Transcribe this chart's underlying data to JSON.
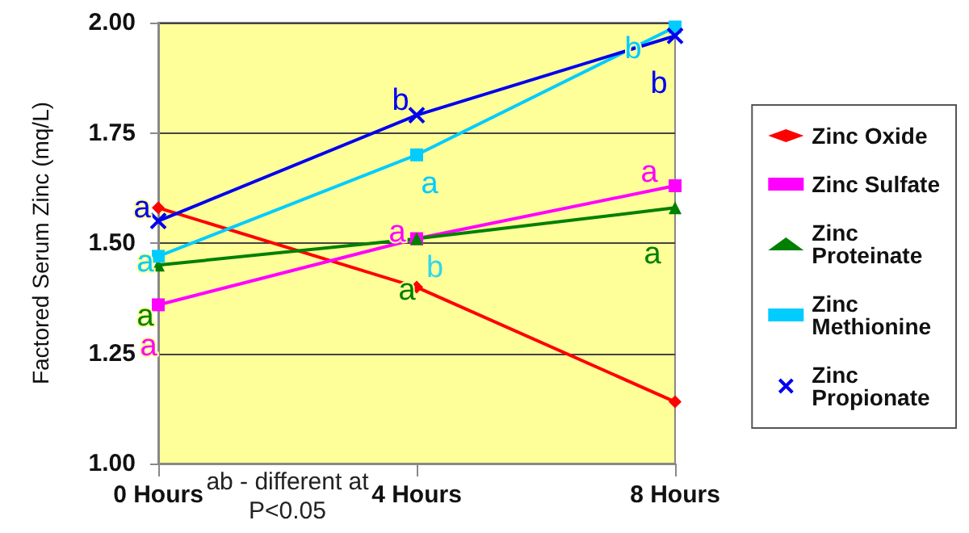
{
  "chart_data": {
    "type": "line",
    "ylabel": "Factored Serum Zinc (mq/L)",
    "categories": [
      "0 Hours",
      "4 Hours",
      "8 Hours"
    ],
    "ylim": [
      1.0,
      2.0
    ],
    "yticks": [
      {
        "value": 1,
        "label": "1.00"
      },
      {
        "value": 1.25,
        "label": "1.25"
      },
      {
        "value": 1.5,
        "label": "1.50"
      },
      {
        "value": 1.75,
        "label": "1.75"
      },
      {
        "value": 2,
        "label": "2.00"
      }
    ],
    "grid": "y",
    "legend": "right",
    "series": [
      {
        "name": "Zinc Oxide",
        "color": "#ff0000",
        "marker": "diamond",
        "values": [
          1.58,
          1.4,
          1.14
        ]
      },
      {
        "name": "Zinc Sulfate",
        "color": "#ff00ff",
        "marker": "square",
        "values": [
          1.36,
          1.51,
          1.63
        ],
        "value_labels": [
          "a",
          "a",
          "a"
        ]
      },
      {
        "name": "Zinc Proteinate",
        "color": "#008000",
        "marker": "triangle",
        "values": [
          1.45,
          1.51,
          1.58
        ],
        "value_labels": [
          "a",
          "a",
          "a"
        ]
      },
      {
        "name": "Zinc Methionine",
        "color": "#00ccff",
        "marker": "square",
        "values": [
          1.47,
          1.7,
          1.99
        ],
        "value_labels": [
          "a",
          "a",
          "b"
        ]
      },
      {
        "name": "Zinc Propionate",
        "color": "#0000ee",
        "marker": "cross",
        "values": [
          1.55,
          1.79,
          1.97
        ],
        "value_labels": [
          "a",
          "b",
          "b"
        ]
      }
    ],
    "annotations": [
      {
        "text": "b",
        "x": "4 Hours",
        "y": 1.51
      },
      "ab - different  at P<0.05"
    ]
  }
}
